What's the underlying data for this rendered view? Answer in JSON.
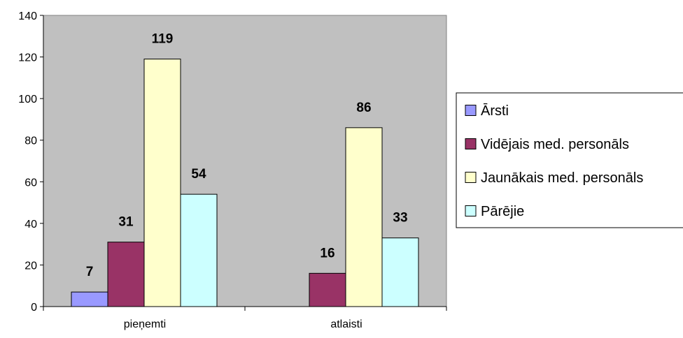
{
  "chart_data": {
    "type": "bar",
    "categories": [
      "pieņemti",
      "atlaisti"
    ],
    "series": [
      {
        "name": "Ārsti",
        "values": [
          7,
          null
        ],
        "color": "#9999ff"
      },
      {
        "name": "Vidējais med. personāls",
        "values": [
          31,
          16
        ],
        "color": "#993366"
      },
      {
        "name": "Jaunākais med. personāls",
        "values": [
          119,
          86
        ],
        "color": "#ffffcc"
      },
      {
        "name": "Pārējie",
        "values": [
          54,
          33
        ],
        "color": "#ccffff"
      }
    ],
    "ylim": [
      0,
      140
    ],
    "yticks": [
      0,
      20,
      40,
      60,
      80,
      100,
      120,
      140
    ],
    "legend_position": "right",
    "plot_background": "#c0c0c0",
    "grid": false
  }
}
